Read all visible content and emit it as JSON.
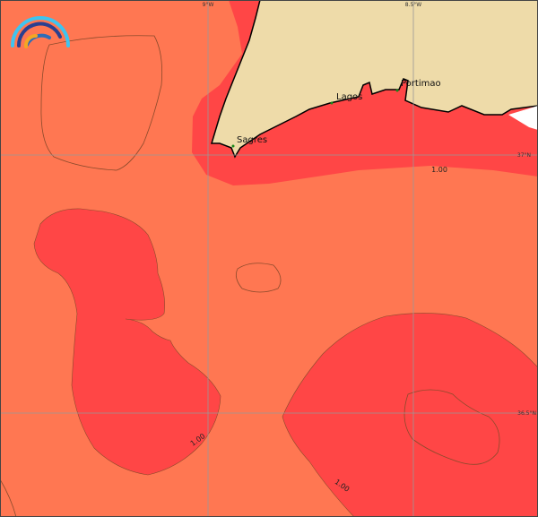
{
  "map": {
    "colors": {
      "ocean": "#FF7752",
      "contour_fill": "#FF4646",
      "land": "#EEDBA9",
      "coast": "#000000",
      "contour_line": "#8B4A2B",
      "grid": "#999999"
    },
    "grid_labels": {
      "lon": [
        "9°W",
        "8.5°W"
      ],
      "lat": [
        "37°N",
        "36.5°N"
      ]
    },
    "cities": [
      {
        "name": "Sagres"
      },
      {
        "name": "Lagos"
      },
      {
        "name": "Portimao"
      }
    ],
    "contour_labels": [
      "1.00",
      "1.00",
      "1.00"
    ],
    "logo": "rainbow-arc-logo"
  }
}
